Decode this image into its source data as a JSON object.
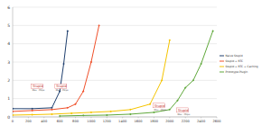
{
  "chart_data": {
    "type": "line",
    "xlim": [
      0,
      2600
    ],
    "xticks": [
      0,
      200,
      400,
      600,
      800,
      1000,
      1200,
      1400,
      1600,
      1800,
      2000,
      2200,
      2400,
      2600
    ],
    "ylim": [
      0,
      6
    ],
    "yticks": [
      0,
      1,
      2,
      3,
      4,
      5,
      6
    ],
    "grid": true,
    "legend": "right",
    "marker": "diamond",
    "series": [
      {
        "name": "Naive Stupid",
        "color": "#1f3f6e",
        "x": [
          0,
          250,
          500,
          600,
          650,
          700
        ],
        "values": [
          0.45,
          0.45,
          0.5,
          1.4,
          2.9,
          4.7
        ]
      },
      {
        "name": "Stupid + RTC",
        "color": "#f0502a",
        "x": [
          0,
          250,
          500,
          700,
          800,
          900,
          1000,
          1100
        ],
        "values": [
          0.3,
          0.35,
          0.4,
          0.5,
          0.7,
          1.4,
          3.0,
          5.0
        ]
      },
      {
        "name": "Stupid + RTC + Caching",
        "color": "#f5c400",
        "x": [
          0,
          250,
          500,
          750,
          1000,
          1250,
          1500,
          1750,
          1900,
          2000
        ],
        "values": [
          0.1,
          0.12,
          0.15,
          0.2,
          0.25,
          0.3,
          0.4,
          0.7,
          2.0,
          4.2
        ]
      },
      {
        "name": "Prototype Plugin",
        "color": "#5fa83a",
        "x": [
          600,
          900,
          1200,
          1500,
          1800,
          2000,
          2100,
          2200,
          2300,
          2400,
          2550
        ],
        "values": [
          0.05,
          0.08,
          0.1,
          0.15,
          0.25,
          0.4,
          0.9,
          1.6,
          2.0,
          2.9,
          4.7
        ]
      }
    ],
    "annotations": [
      {
        "text": "Stupid",
        "sublabel": "Max=45fps",
        "x": 250,
        "y": 1.6
      },
      {
        "text": "Stupid",
        "sublabel": "Max=45fps",
        "x": 550,
        "y": 1.6
      },
      {
        "text": "Stupid",
        "sublabel": "Max=45fps",
        "x": 1800,
        "y": 0.55
      },
      {
        "text": "Stupid",
        "sublabel": "Max=45fps",
        "x": 2100,
        "y": 0.3
      }
    ]
  }
}
